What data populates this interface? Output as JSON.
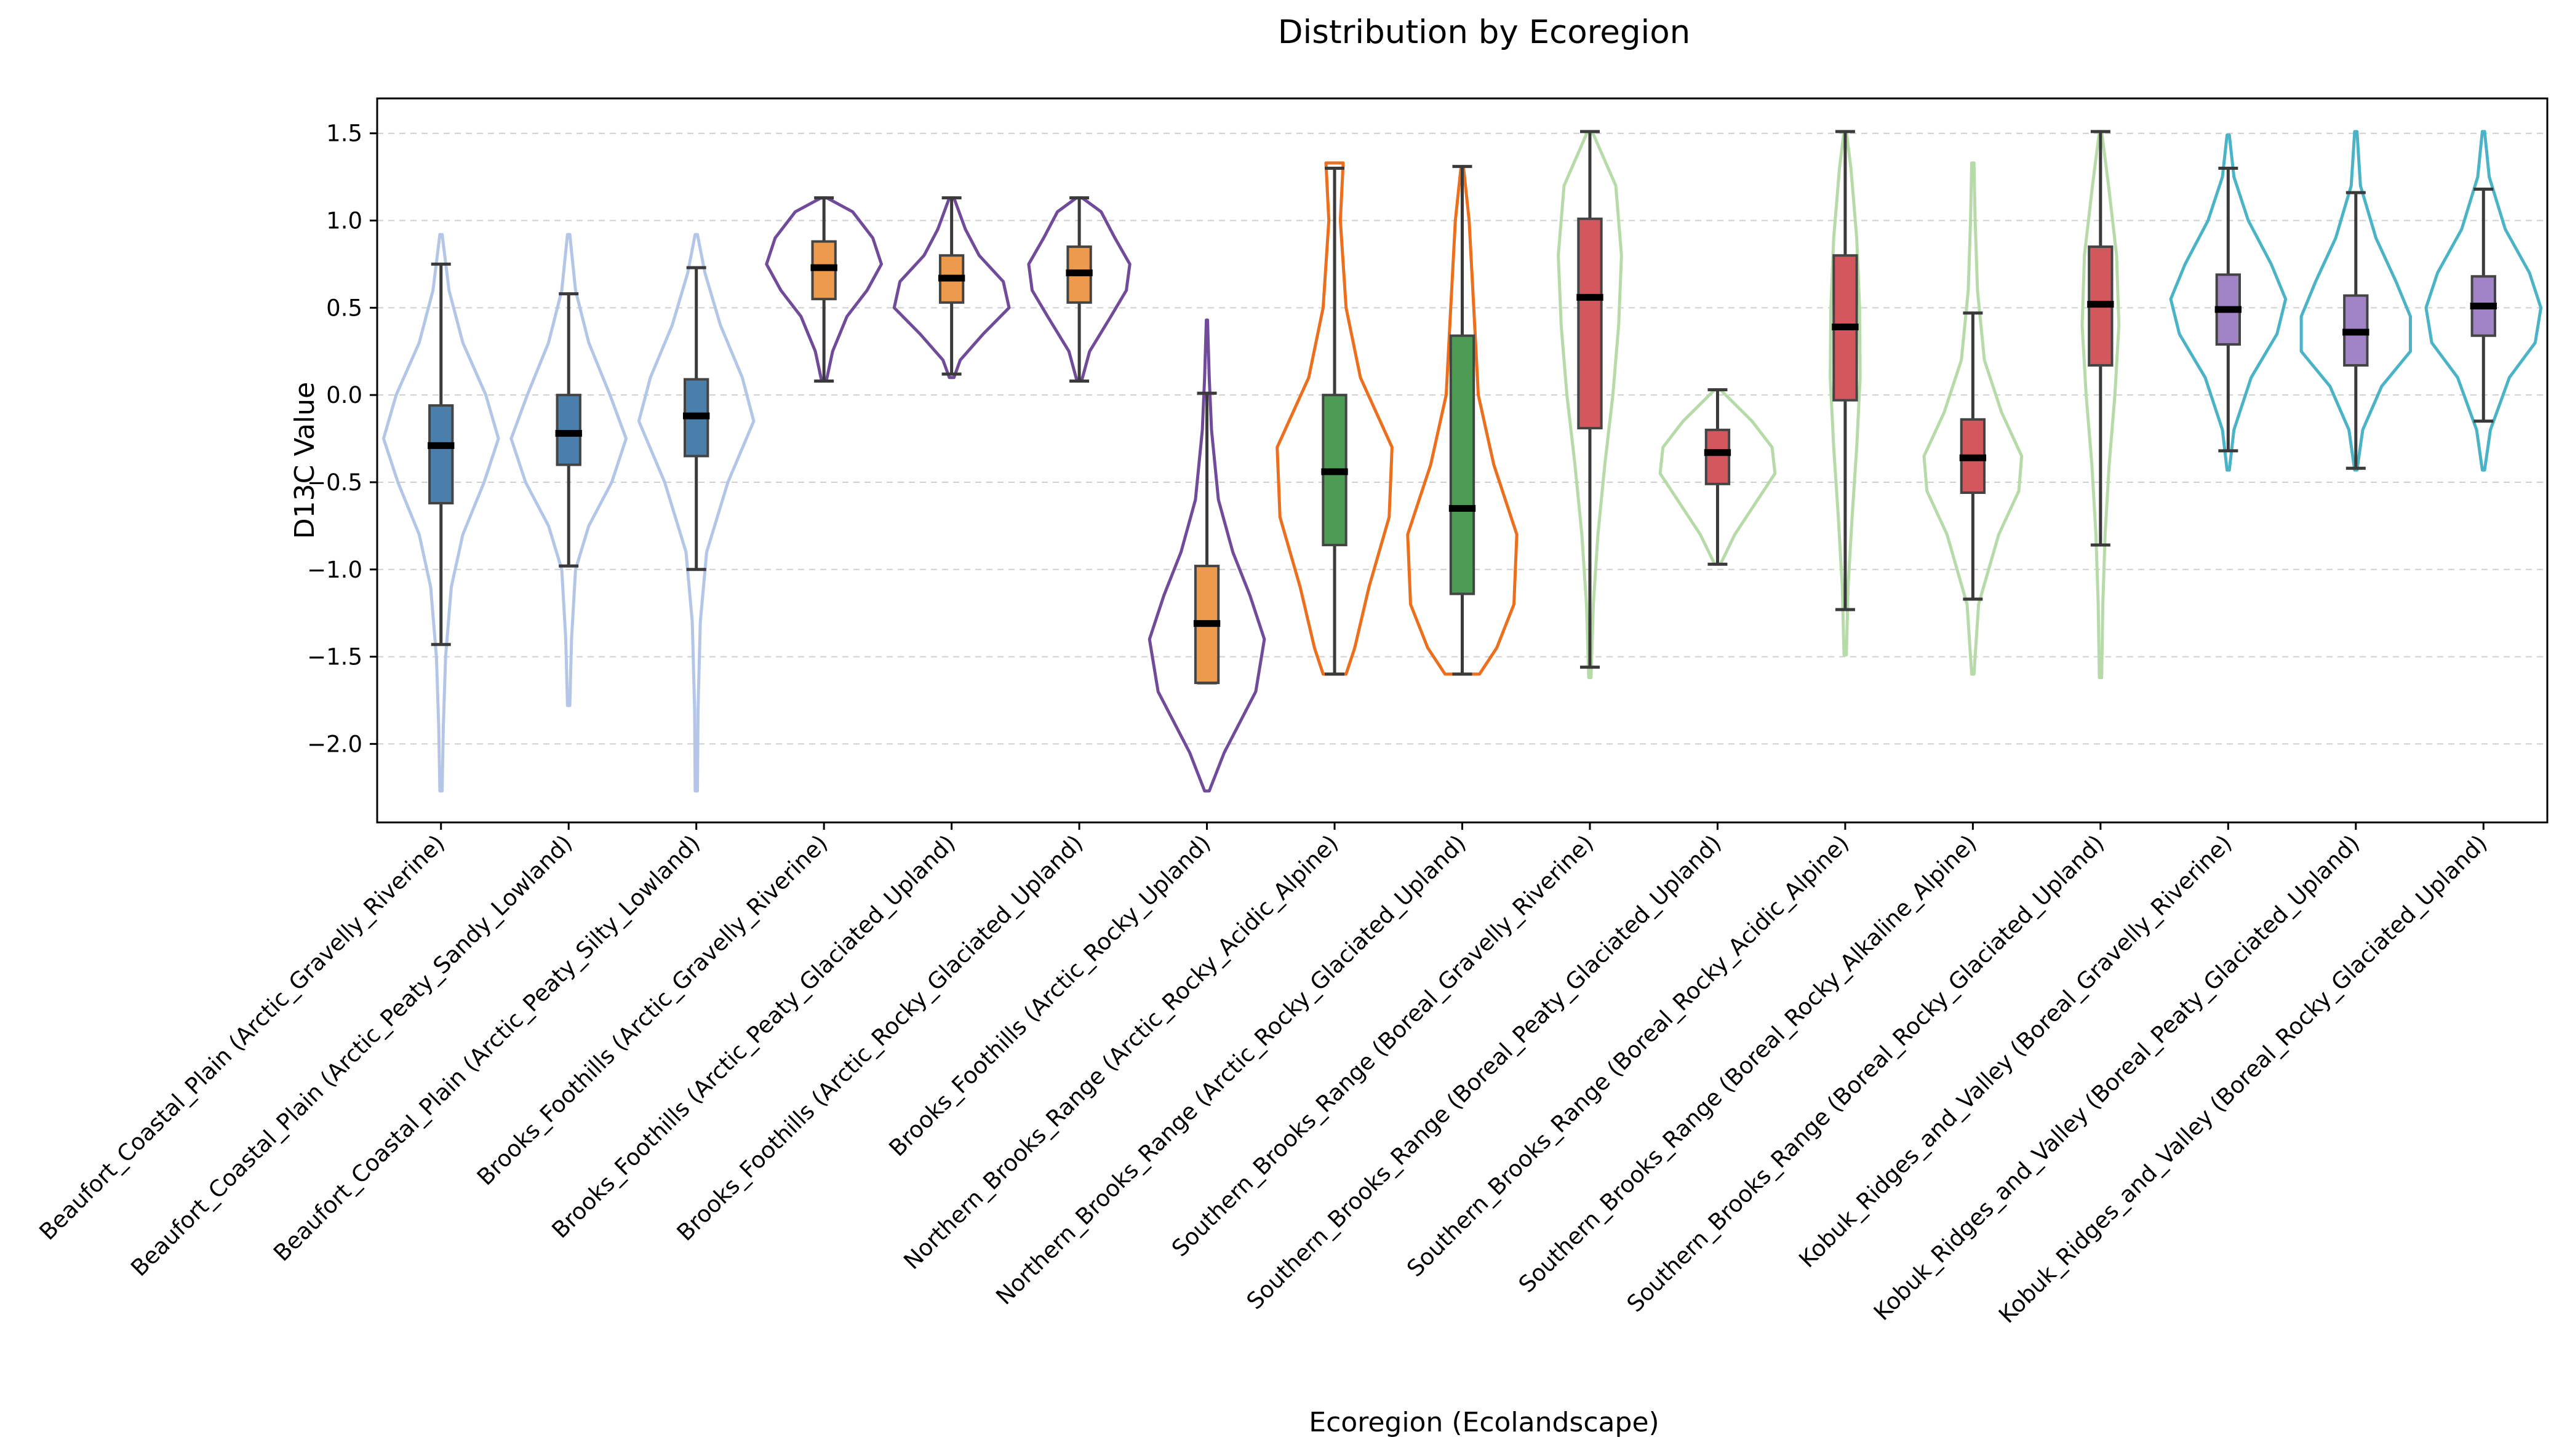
{
  "chart_data": {
    "type": "violin",
    "title": "Distribution by Ecoregion",
    "xlabel": "Ecoregion (Ecolandscape)",
    "ylabel": "D13C Value",
    "ylim": [
      -2.45,
      1.7
    ],
    "yticks": [
      -2.0,
      -1.5,
      -1.0,
      -0.5,
      0.0,
      0.5,
      1.0,
      1.5
    ],
    "grid": "y-dashed",
    "categories": [
      "Beaufort_Coastal_Plain (Arctic_Gravelly_Riverine)",
      "Beaufort_Coastal_Plain (Arctic_Peaty_Sandy_Lowland)",
      "Beaufort_Coastal_Plain (Arctic_Peaty_Silty_Lowland)",
      "Brooks_Foothills (Arctic_Gravelly_Riverine)",
      "Brooks_Foothills (Arctic_Peaty_Glaciated_Upland)",
      "Brooks_Foothills (Arctic_Rocky_Glaciated_Upland)",
      "Brooks_Foothills (Arctic_Rocky_Upland)",
      "Northern_Brooks_Range (Arctic_Rocky_Acidic_Alpine)",
      "Northern_Brooks_Range (Arctic_Rocky_Glaciated_Upland)",
      "Southern_Brooks_Range (Boreal_Gravelly_Riverine)",
      "Southern_Brooks_Range (Boreal_Peaty_Glaciated_Upland)",
      "Southern_Brooks_Range (Boreal_Rocky_Acidic_Alpine)",
      "Southern_Brooks_Range (Boreal_Rocky_Alkaline_Alpine)",
      "Southern_Brooks_Range (Boreal_Rocky_Glaciated_Upland)",
      "Kobuk_Ridges_and_Valley (Boreal_Gravelly_Riverine)",
      "Kobuk_Ridges_and_Valley (Boreal_Peaty_Glaciated_Upland)",
      "Kobuk_Ridges_and_Valley (Boreal_Rocky_Glaciated_Upland)"
    ],
    "boxes": [
      {
        "whislo": -1.43,
        "q1": -0.62,
        "med": -0.29,
        "q3": -0.06,
        "whishi": 0.75
      },
      {
        "whislo": -0.98,
        "q1": -0.4,
        "med": -0.22,
        "q3": 0.0,
        "whishi": 0.58
      },
      {
        "whislo": -1.0,
        "q1": -0.35,
        "med": -0.12,
        "q3": 0.09,
        "whishi": 0.73
      },
      {
        "whislo": 0.08,
        "q1": 0.55,
        "med": 0.73,
        "q3": 0.88,
        "whishi": 1.13
      },
      {
        "whislo": 0.12,
        "q1": 0.53,
        "med": 0.67,
        "q3": 0.8,
        "whishi": 1.13
      },
      {
        "whislo": 0.08,
        "q1": 0.53,
        "med": 0.7,
        "q3": 0.85,
        "whishi": 1.13
      },
      {
        "whislo": -1.65,
        "q1": -1.65,
        "med": -1.31,
        "q3": -0.98,
        "whishi": 0.01
      },
      {
        "whislo": -1.6,
        "q1": -0.86,
        "med": -0.44,
        "q3": 0.0,
        "whishi": 1.3
      },
      {
        "whislo": -1.6,
        "q1": -1.14,
        "med": -0.65,
        "q3": 0.34,
        "whishi": 1.31
      },
      {
        "whislo": -1.56,
        "q1": -0.19,
        "med": 0.56,
        "q3": 1.01,
        "whishi": 1.51
      },
      {
        "whislo": -0.97,
        "q1": -0.51,
        "med": -0.33,
        "q3": -0.2,
        "whishi": 0.03
      },
      {
        "whislo": -1.23,
        "q1": -0.03,
        "med": 0.39,
        "q3": 0.8,
        "whishi": 1.51
      },
      {
        "whislo": -1.17,
        "q1": -0.56,
        "med": -0.36,
        "q3": -0.14,
        "whishi": 0.47
      },
      {
        "whislo": -0.86,
        "q1": 0.17,
        "med": 0.52,
        "q3": 0.85,
        "whishi": 1.51
      },
      {
        "whislo": -0.32,
        "q1": 0.29,
        "med": 0.49,
        "q3": 0.69,
        "whishi": 1.3
      },
      {
        "whislo": -0.42,
        "q1": 0.17,
        "med": 0.36,
        "q3": 0.57,
        "whishi": 1.16
      },
      {
        "whislo": -0.15,
        "q1": 0.34,
        "med": 0.51,
        "q3": 0.68,
        "whishi": 1.18
      }
    ],
    "violins": [
      {
        "min": -2.27,
        "max": 0.92,
        "y": [
          -2.27,
          -1.9,
          -1.5,
          -1.1,
          -0.8,
          -0.5,
          -0.25,
          0.0,
          0.3,
          0.6,
          0.92
        ],
        "w": [
          0.02,
          0.04,
          0.08,
          0.18,
          0.38,
          0.75,
          1.0,
          0.78,
          0.38,
          0.14,
          0.02
        ]
      },
      {
        "min": -1.78,
        "max": 0.92,
        "y": [
          -1.78,
          -1.4,
          -1.0,
          -0.75,
          -0.5,
          -0.25,
          0.0,
          0.3,
          0.6,
          0.92
        ],
        "w": [
          0.02,
          0.05,
          0.12,
          0.35,
          0.75,
          1.0,
          0.72,
          0.35,
          0.12,
          0.02
        ]
      },
      {
        "min": -2.27,
        "max": 0.92,
        "y": [
          -2.27,
          -1.8,
          -1.3,
          -0.9,
          -0.5,
          -0.15,
          0.1,
          0.4,
          0.7,
          0.92
        ],
        "w": [
          0.02,
          0.03,
          0.07,
          0.18,
          0.55,
          1.0,
          0.8,
          0.42,
          0.15,
          0.02
        ]
      },
      {
        "min": 0.08,
        "max": 1.13,
        "y": [
          0.08,
          0.25,
          0.45,
          0.6,
          0.75,
          0.9,
          1.05,
          1.13
        ],
        "w": [
          0.04,
          0.15,
          0.4,
          0.75,
          1.0,
          0.85,
          0.5,
          0.05
        ]
      },
      {
        "min": 0.1,
        "max": 1.13,
        "y": [
          0.1,
          0.2,
          0.35,
          0.5,
          0.65,
          0.8,
          0.95,
          1.13
        ],
        "w": [
          0.04,
          0.15,
          0.55,
          1.0,
          0.9,
          0.48,
          0.24,
          0.04
        ]
      },
      {
        "min": 0.08,
        "max": 1.13,
        "y": [
          0.08,
          0.25,
          0.45,
          0.6,
          0.75,
          0.9,
          1.05,
          1.13
        ],
        "w": [
          0.04,
          0.18,
          0.55,
          0.82,
          0.88,
          0.62,
          0.38,
          0.05
        ]
      },
      {
        "min": -2.27,
        "max": 0.43,
        "y": [
          -2.27,
          -2.05,
          -1.7,
          -1.4,
          -1.15,
          -0.9,
          -0.6,
          -0.2,
          0.1,
          0.43
        ],
        "w": [
          0.04,
          0.3,
          0.85,
          1.0,
          0.75,
          0.45,
          0.2,
          0.08,
          0.04,
          0.01
        ]
      },
      {
        "min": -1.6,
        "max": 1.33,
        "y": [
          -1.6,
          -1.45,
          -1.1,
          -0.7,
          -0.3,
          0.1,
          0.5,
          1.0,
          1.33
        ],
        "w": [
          0.2,
          0.35,
          0.6,
          0.95,
          1.0,
          0.45,
          0.2,
          0.1,
          0.15
        ]
      },
      {
        "min": -1.6,
        "max": 1.31,
        "y": [
          -1.6,
          -1.45,
          -1.2,
          -0.8,
          -0.4,
          0.0,
          0.5,
          1.0,
          1.31
        ],
        "w": [
          0.3,
          0.6,
          0.9,
          0.95,
          0.55,
          0.28,
          0.2,
          0.12,
          0.02
        ]
      },
      {
        "min": -1.62,
        "max": 1.51,
        "y": [
          -1.62,
          -1.2,
          -0.8,
          -0.4,
          0.0,
          0.4,
          0.8,
          1.2,
          1.51
        ],
        "w": [
          0.02,
          0.06,
          0.14,
          0.26,
          0.4,
          0.5,
          0.55,
          0.45,
          0.04
        ]
      },
      {
        "min": -0.97,
        "max": 0.03,
        "y": [
          -0.97,
          -0.8,
          -0.6,
          -0.45,
          -0.3,
          -0.15,
          0.03
        ],
        "w": [
          0.05,
          0.3,
          0.7,
          1.0,
          0.95,
          0.6,
          0.05
        ]
      },
      {
        "min": -1.49,
        "max": 1.51,
        "y": [
          -1.49,
          -1.1,
          -0.7,
          -0.3,
          0.1,
          0.5,
          0.9,
          1.3,
          1.51
        ],
        "w": [
          0.02,
          0.05,
          0.12,
          0.2,
          0.26,
          0.25,
          0.2,
          0.1,
          0.02
        ]
      },
      {
        "min": -1.6,
        "max": 1.33,
        "y": [
          -1.6,
          -1.2,
          -0.8,
          -0.55,
          -0.35,
          -0.1,
          0.2,
          0.6,
          1.0,
          1.33
        ],
        "w": [
          0.02,
          0.1,
          0.45,
          0.8,
          0.85,
          0.5,
          0.2,
          0.08,
          0.04,
          0.02
        ]
      },
      {
        "min": -1.62,
        "max": 1.51,
        "y": [
          -1.62,
          -1.2,
          -0.8,
          -0.4,
          0.0,
          0.4,
          0.8,
          1.2,
          1.51
        ],
        "w": [
          0.02,
          0.04,
          0.08,
          0.15,
          0.25,
          0.32,
          0.28,
          0.14,
          0.02
        ]
      },
      {
        "min": -0.43,
        "max": 1.49,
        "y": [
          -0.43,
          -0.2,
          0.1,
          0.35,
          0.55,
          0.75,
          1.0,
          1.25,
          1.49
        ],
        "w": [
          0.02,
          0.1,
          0.4,
          0.85,
          1.0,
          0.75,
          0.35,
          0.1,
          0.02
        ]
      },
      {
        "min": -0.43,
        "max": 1.51,
        "y": [
          -0.43,
          -0.2,
          0.05,
          0.25,
          0.45,
          0.65,
          0.9,
          1.2,
          1.51
        ],
        "w": [
          0.02,
          0.12,
          0.45,
          0.95,
          0.95,
          0.7,
          0.35,
          0.08,
          0.02
        ]
      },
      {
        "min": -0.43,
        "max": 1.51,
        "y": [
          -0.43,
          -0.2,
          0.1,
          0.3,
          0.5,
          0.7,
          0.95,
          1.25,
          1.51
        ],
        "w": [
          0.02,
          0.12,
          0.45,
          0.9,
          1.0,
          0.8,
          0.38,
          0.1,
          0.02
        ]
      }
    ],
    "colors": {
      "beaufort_box": "#4a7fab",
      "beaufort_violin": "#b4c6e7",
      "brooks_box": "#ed9a4c",
      "brooks_violin": "#6f4b9a",
      "northern_box": "#4e9b55",
      "northern_violin": "#ec6f1e",
      "southern_box": "#d3585e",
      "southern_violin": "#b7dba8",
      "kobuk_box": "#a184c5",
      "kobuk_violin": "#4ab3c6",
      "median": "#000000",
      "whisker": "#3a3a3a"
    },
    "group_of_category": [
      "beaufort",
      "beaufort",
      "beaufort",
      "brooks",
      "brooks",
      "brooks",
      "brooks",
      "northern",
      "northern",
      "southern",
      "southern",
      "southern",
      "southern",
      "southern",
      "kobuk",
      "kobuk",
      "kobuk"
    ],
    "box_color_override": {
      "6": "brooks_box",
      "7": "northern_box",
      "8": "northern_box"
    }
  }
}
